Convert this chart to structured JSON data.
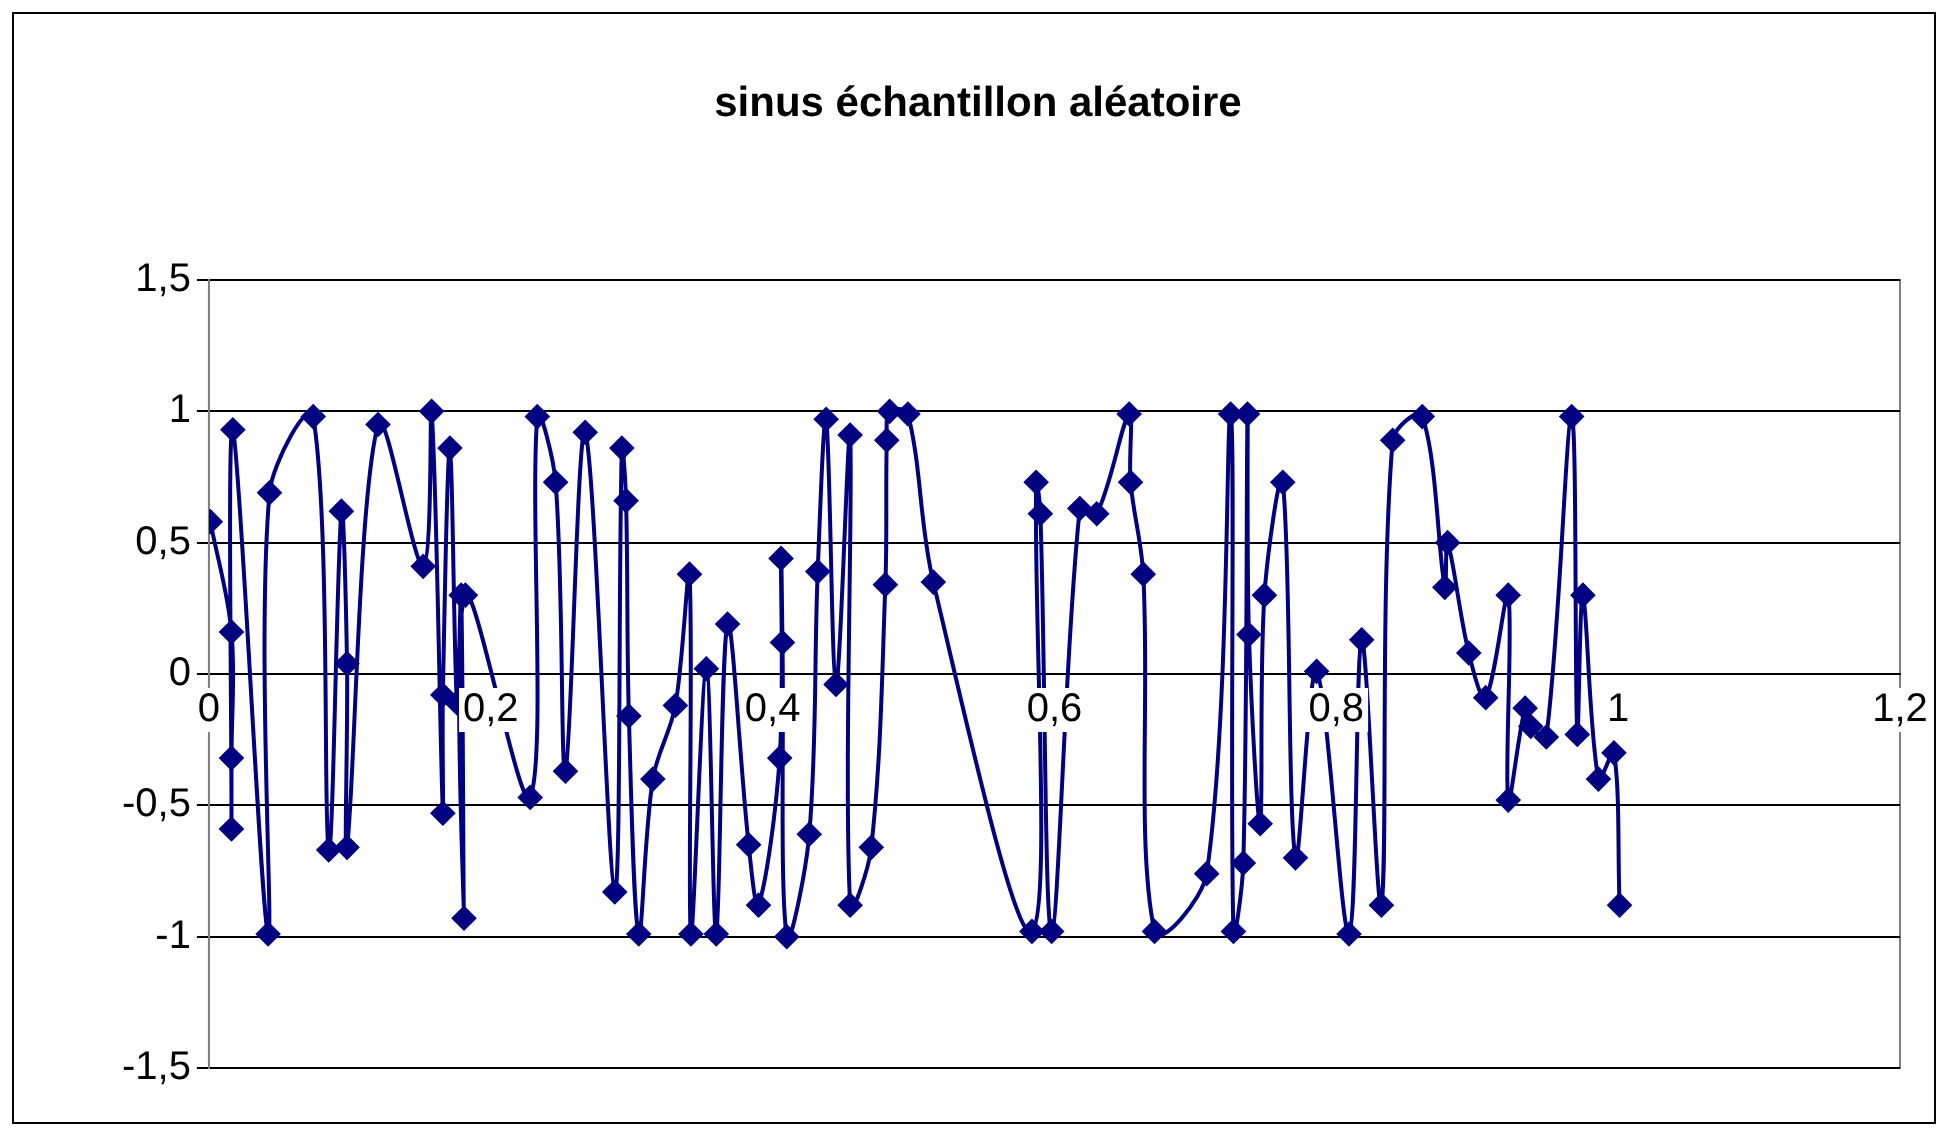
{
  "chart_data": {
    "type": "line",
    "title": "sinus échantillon aléatoire",
    "marker": "diamond",
    "grid": "y",
    "legend": false,
    "x": [
      0.001,
      0.016,
      0.016,
      0.016,
      0.017,
      0.042,
      0.043,
      0.074,
      0.085,
      0.094,
      0.098,
      0.098,
      0.12,
      0.152,
      0.158,
      0.166,
      0.166,
      0.171,
      0.176,
      0.179,
      0.181,
      0.182,
      0.228,
      0.233,
      0.246,
      0.253,
      0.267,
      0.288,
      0.293,
      0.296,
      0.298,
      0.305,
      0.315,
      0.331,
      0.341,
      0.342,
      0.353,
      0.36,
      0.368,
      0.383,
      0.39,
      0.405,
      0.406,
      0.407,
      0.41,
      0.426,
      0.432,
      0.438,
      0.445,
      0.455,
      0.455,
      0.47,
      0.48,
      0.481,
      0.483,
      0.496,
      0.514,
      0.584,
      0.587,
      0.59,
      0.598,
      0.618,
      0.63,
      0.653,
      0.654,
      0.663,
      0.671,
      0.708,
      0.725,
      0.727,
      0.734,
      0.737,
      0.738,
      0.746,
      0.749,
      0.762,
      0.771,
      0.786,
      0.809,
      0.818,
      0.832,
      0.84,
      0.861,
      0.877,
      0.879,
      0.894,
      0.906,
      0.922,
      0.922,
      0.934,
      0.938,
      0.949,
      0.967,
      0.971,
      0.975,
      0.986,
      0.997,
      1.001
    ],
    "series": [
      {
        "color": "#000080",
        "values": [
          0.58,
          0.16,
          -0.32,
          -0.59,
          0.93,
          -0.99,
          0.69,
          0.98,
          -0.67,
          0.62,
          0.04,
          -0.66,
          0.95,
          0.41,
          1.0,
          -0.53,
          -0.08,
          0.86,
          -0.11,
          0.3,
          -0.93,
          0.3,
          -0.47,
          0.98,
          0.73,
          -0.37,
          0.92,
          -0.83,
          0.86,
          0.66,
          -0.16,
          -0.99,
          -0.4,
          -0.12,
          0.38,
          -0.99,
          0.02,
          -0.99,
          0.19,
          -0.65,
          -0.88,
          -0.32,
          0.44,
          0.12,
          -1.0,
          -0.61,
          0.39,
          0.97,
          -0.04,
          0.91,
          -0.88,
          -0.66,
          0.34,
          0.89,
          1.0,
          0.99,
          0.35,
          -0.98,
          0.73,
          0.61,
          -0.98,
          0.63,
          0.61,
          0.99,
          0.73,
          0.38,
          -0.98,
          -0.76,
          0.99,
          -0.98,
          -0.72,
          0.99,
          0.15,
          -0.57,
          0.3,
          0.73,
          -0.7,
          0.01,
          -0.99,
          0.13,
          -0.88,
          0.89,
          0.98,
          0.33,
          0.5,
          0.08,
          -0.09,
          0.3,
          -0.48,
          -0.13,
          -0.2,
          -0.24,
          0.98,
          -0.23,
          0.3,
          -0.4,
          -0.3,
          -0.88
        ]
      }
    ],
    "xlim": [
      0,
      1.2
    ],
    "xticks": [
      0,
      {
        "value": 0.2,
        "label": "0,2"
      },
      {
        "value": 0.4,
        "label": "0,4"
      },
      {
        "value": 0.6,
        "label": "0,6"
      },
      {
        "value": 0.8,
        "label": "0,8"
      },
      1,
      {
        "value": 1.2,
        "label": "1,2"
      }
    ],
    "ylim": [
      -1.5,
      1.5
    ],
    "yticks": [
      {
        "value": -1.5,
        "label": "-1,5"
      },
      -1,
      {
        "value": -0.5,
        "label": "-0,5"
      },
      0,
      {
        "value": 0.5,
        "label": "0,5"
      },
      1,
      {
        "value": 1.5,
        "label": "1,5"
      }
    ]
  }
}
